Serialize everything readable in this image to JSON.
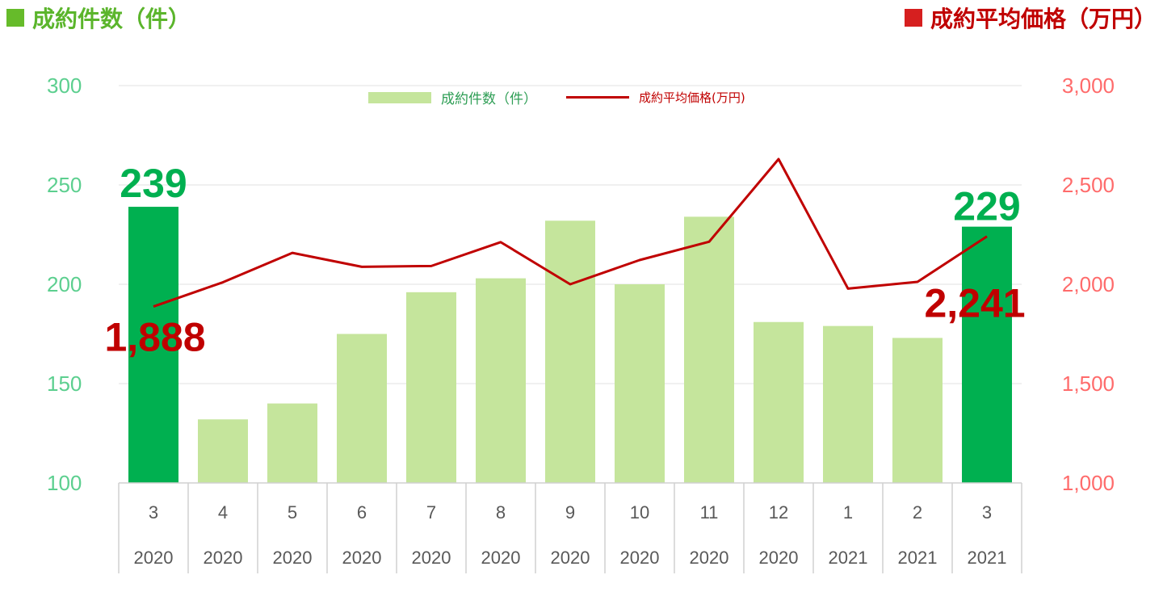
{
  "header": {
    "left_title": "成約件数（件）",
    "right_title": "成約平均価格（万円）"
  },
  "legend": {
    "bar_label": "成約件数（件）",
    "line_label": "成約平均価格(万円)"
  },
  "colors": {
    "bar_highlight": "#00b050",
    "bar_normal": "#c5e59c",
    "line": "#c00000",
    "left_axis": "#5ccf8f",
    "right_axis": "#ff6b6b",
    "title_green": "#5bb52c",
    "title_red": "#c00000",
    "square_green": "#66bb2a",
    "square_red": "#d61f1f",
    "grid": "#e2e2e2",
    "category_text": "#595959"
  },
  "chart_data": {
    "type": "bar",
    "categories": [
      {
        "month": "3",
        "year": "2020"
      },
      {
        "month": "4",
        "year": "2020"
      },
      {
        "month": "5",
        "year": "2020"
      },
      {
        "month": "6",
        "year": "2020"
      },
      {
        "month": "7",
        "year": "2020"
      },
      {
        "month": "8",
        "year": "2020"
      },
      {
        "month": "9",
        "year": "2020"
      },
      {
        "month": "10",
        "year": "2020"
      },
      {
        "month": "11",
        "year": "2020"
      },
      {
        "month": "12",
        "year": "2020"
      },
      {
        "month": "1",
        "year": "2021"
      },
      {
        "month": "2",
        "year": "2021"
      },
      {
        "month": "3",
        "year": "2021"
      }
    ],
    "series": [
      {
        "name": "成約件数（件）",
        "type": "bar",
        "axis": "left",
        "values": [
          239,
          132,
          140,
          175,
          196,
          203,
          232,
          200,
          234,
          181,
          179,
          173,
          229
        ],
        "highlight": [
          true,
          false,
          false,
          false,
          false,
          false,
          false,
          false,
          false,
          false,
          false,
          false,
          true
        ]
      },
      {
        "name": "成約平均価格(万円)",
        "type": "line",
        "axis": "right",
        "values": [
          1888,
          2010,
          2158,
          2088,
          2092,
          2212,
          2000,
          2122,
          2214,
          2630,
          1978,
          2012,
          2241
        ]
      }
    ],
    "y_left": {
      "min": 100,
      "max": 300,
      "ticks": [
        "100",
        "150",
        "200",
        "250",
        "300"
      ],
      "tick_values": [
        100,
        150,
        200,
        250,
        300
      ]
    },
    "y_right": {
      "min": 1000,
      "max": 3000,
      "ticks": [
        "1,000",
        "1,500",
        "2,000",
        "2,500",
        "3,000"
      ],
      "tick_values": [
        1000,
        1500,
        2000,
        2500,
        3000
      ]
    },
    "grid": true,
    "legend_position": "top",
    "annotations": [
      {
        "series": 0,
        "index": 0,
        "text": "239"
      },
      {
        "series": 0,
        "index": 12,
        "text": "229"
      },
      {
        "series": 1,
        "index": 0,
        "text": "1,888"
      },
      {
        "series": 1,
        "index": 12,
        "text": "2,241"
      }
    ]
  }
}
